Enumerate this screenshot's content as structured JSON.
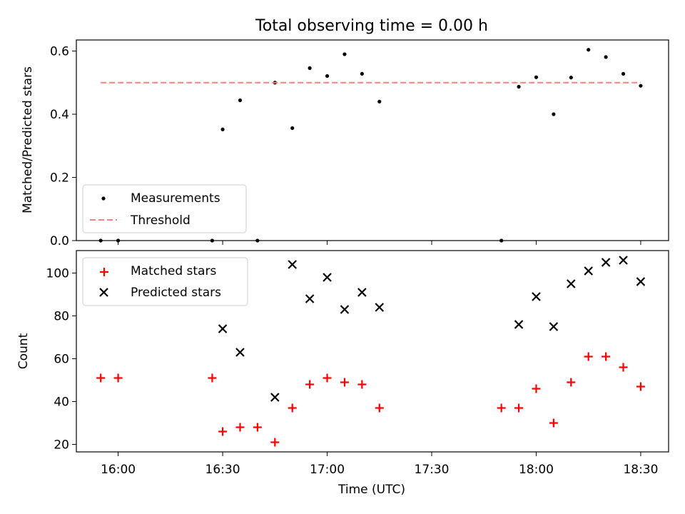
{
  "chart_data": [
    {
      "type": "scatter",
      "title": "Total observing time = 0.00 h",
      "xlabel": "",
      "ylabel": "Matched/Predicted stars",
      "xlim": [
        "15:48",
        "18:38"
      ],
      "ylim": [
        0,
        0.635
      ],
      "y_ticks": [
        "0.0",
        "0.2",
        "0.4",
        "0.6"
      ],
      "legend": {
        "placement": "lower-left",
        "entries": [
          "Measurements",
          "Threshold"
        ]
      },
      "series": [
        {
          "name": "Measurements",
          "color": "#000000",
          "marker": "dot",
          "points": [
            [
              "15:55",
              0.0
            ],
            [
              "16:00",
              0.0
            ],
            [
              "16:27",
              0.0
            ],
            [
              "16:30",
              0.352
            ],
            [
              "16:35",
              0.444
            ],
            [
              "16:40",
              0.0
            ],
            [
              "16:45",
              0.5
            ],
            [
              "16:50",
              0.356
            ],
            [
              "16:55",
              0.546
            ],
            [
              "17:00",
              0.521
            ],
            [
              "17:05",
              0.59
            ],
            [
              "17:10",
              0.528
            ],
            [
              "17:15",
              0.44
            ],
            [
              "17:50",
              0.0
            ],
            [
              "17:55",
              0.487
            ],
            [
              "18:00",
              0.517
            ],
            [
              "18:05",
              0.4
            ],
            [
              "18:10",
              0.516
            ],
            [
              "18:15",
              0.604
            ],
            [
              "18:20",
              0.581
            ],
            [
              "18:25",
              0.528
            ],
            [
              "18:30",
              0.49
            ]
          ]
        },
        {
          "name": "Threshold",
          "color": "#ff7f7f",
          "style": "dashed",
          "points": [
            [
              "15:55",
              0.5
            ],
            [
              "18:30",
              0.5
            ]
          ]
        }
      ]
    },
    {
      "type": "scatter",
      "title": "",
      "xlabel": "Time (UTC)",
      "ylabel": "Count",
      "xlim": [
        "15:48",
        "18:38"
      ],
      "ylim": [
        16.5,
        110.5
      ],
      "x_ticks": [
        "16:00",
        "16:30",
        "17:00",
        "17:30",
        "18:00",
        "18:30"
      ],
      "y_ticks": [
        "20",
        "40",
        "60",
        "80",
        "100"
      ],
      "legend": {
        "placement": "upper-left",
        "entries": [
          "Matched stars",
          "Predicted stars"
        ]
      },
      "series": [
        {
          "name": "Matched stars",
          "color": "#ff0000",
          "marker": "plus",
          "points": [
            [
              "15:55",
              51
            ],
            [
              "16:00",
              51
            ],
            [
              "16:27",
              51
            ],
            [
              "16:30",
              26
            ],
            [
              "16:35",
              28
            ],
            [
              "16:40",
              28
            ],
            [
              "16:45",
              21
            ],
            [
              "16:50",
              37
            ],
            [
              "16:55",
              48
            ],
            [
              "17:00",
              51
            ],
            [
              "17:05",
              49
            ],
            [
              "17:10",
              48
            ],
            [
              "17:15",
              37
            ],
            [
              "17:50",
              37
            ],
            [
              "17:55",
              37
            ],
            [
              "18:00",
              46
            ],
            [
              "18:05",
              30
            ],
            [
              "18:10",
              49
            ],
            [
              "18:15",
              61
            ],
            [
              "18:20",
              61
            ],
            [
              "18:25",
              56
            ],
            [
              "18:30",
              47
            ]
          ]
        },
        {
          "name": "Predicted stars",
          "color": "#000000",
          "marker": "x",
          "points": [
            [
              "16:30",
              74
            ],
            [
              "16:35",
              63
            ],
            [
              "16:45",
              42
            ],
            [
              "16:50",
              104
            ],
            [
              "16:55",
              88
            ],
            [
              "17:00",
              98
            ],
            [
              "17:05",
              83
            ],
            [
              "17:10",
              91
            ],
            [
              "17:15",
              84
            ],
            [
              "17:55",
              76
            ],
            [
              "18:00",
              89
            ],
            [
              "18:05",
              75
            ],
            [
              "18:10",
              95
            ],
            [
              "18:15",
              101
            ],
            [
              "18:20",
              105
            ],
            [
              "18:25",
              106
            ],
            [
              "18:30",
              96
            ]
          ]
        }
      ]
    }
  ]
}
